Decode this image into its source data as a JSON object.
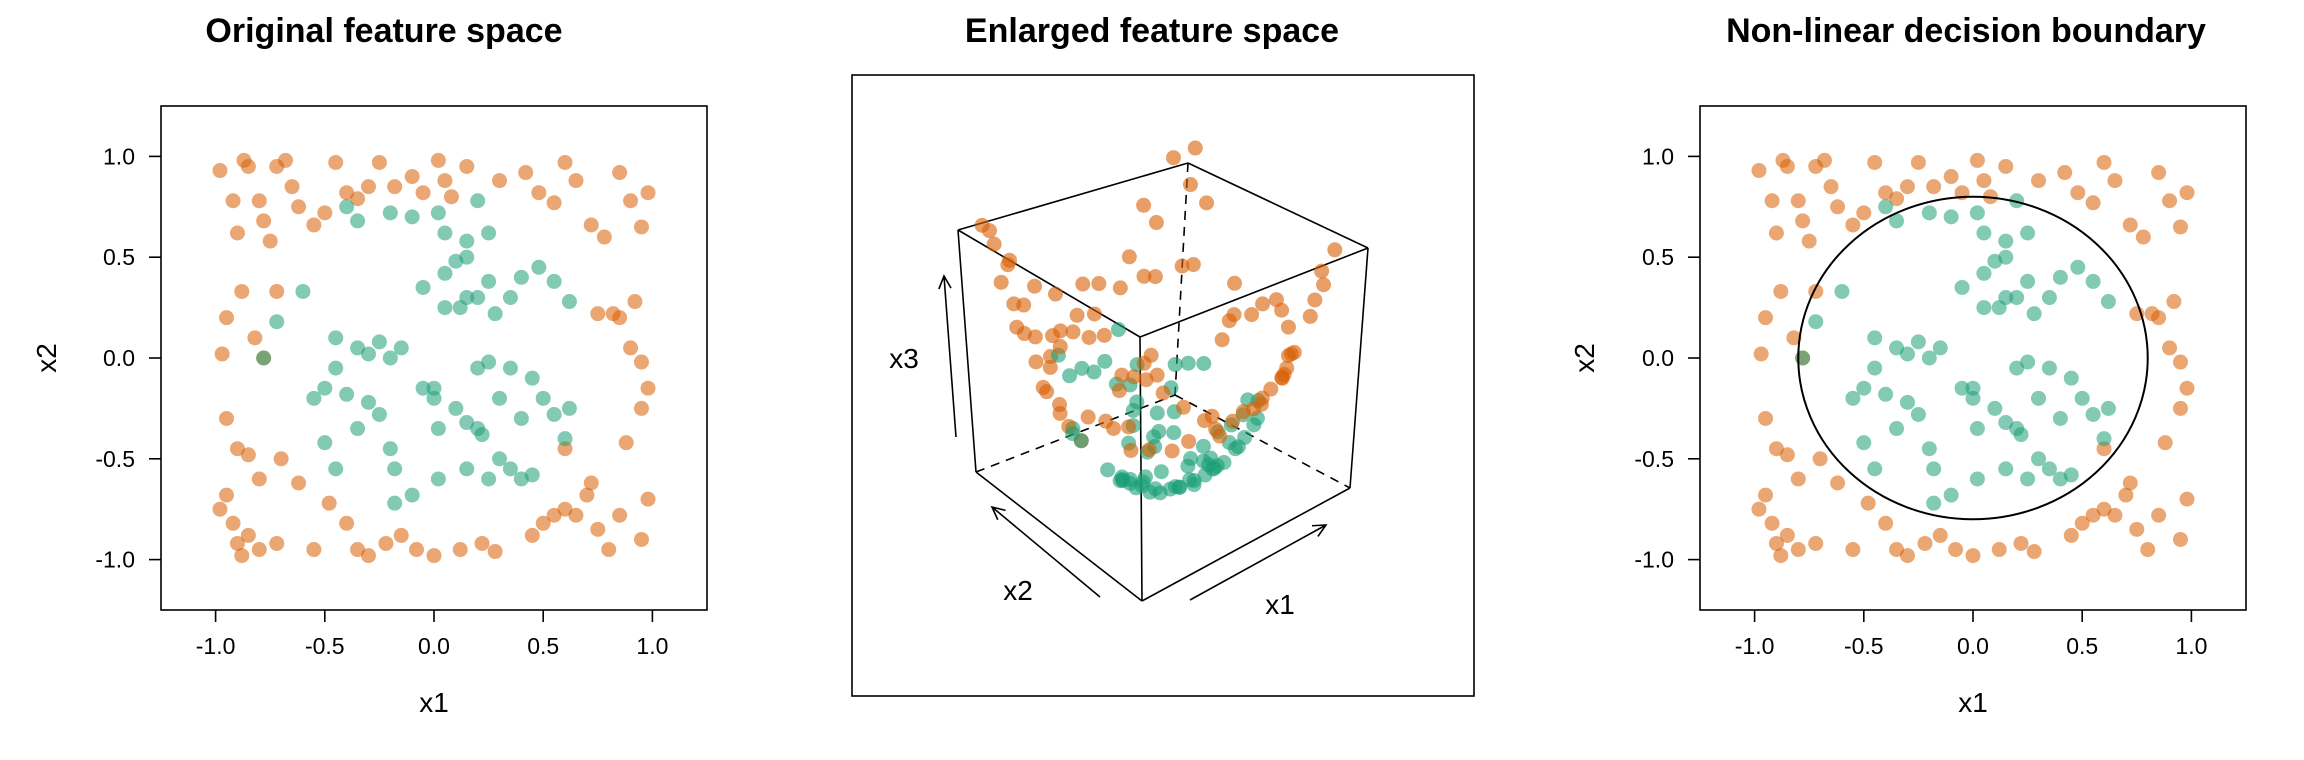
{
  "colors": {
    "orange": "#d95f02",
    "green": "#1b9e77"
  },
  "chart_data": [
    {
      "type": "scatter",
      "title": "Original feature space",
      "xlabel": "x1",
      "ylabel": "x2",
      "xlim": [
        -1.25,
        1.25
      ],
      "ylim": [
        -1.25,
        1.25
      ],
      "xticks": [
        "-1.0",
        "-0.5",
        "0.0",
        "0.5",
        "1.0"
      ],
      "yticks": [
        "-1.0",
        "-0.5",
        "0.0",
        "0.5",
        "1.0"
      ],
      "legend": "none",
      "series": [
        {
          "color": "orange",
          "points": [
            [
              -0.98,
              0.93
            ],
            [
              -0.92,
              0.78
            ],
            [
              -0.9,
              0.62
            ],
            [
              -0.87,
              0.98
            ],
            [
              -0.85,
              0.95
            ],
            [
              -0.8,
              0.78
            ],
            [
              -0.78,
              0.68
            ],
            [
              -0.75,
              0.58
            ],
            [
              -0.72,
              0.95
            ],
            [
              -0.68,
              0.98
            ],
            [
              -0.65,
              0.85
            ],
            [
              -0.62,
              0.75
            ],
            [
              -0.55,
              0.66
            ],
            [
              -0.5,
              0.72
            ],
            [
              -0.45,
              0.97
            ],
            [
              -0.4,
              0.82
            ],
            [
              -0.35,
              0.79
            ],
            [
              -0.3,
              0.85
            ],
            [
              -0.25,
              0.97
            ],
            [
              -0.18,
              0.85
            ],
            [
              -0.1,
              0.9
            ],
            [
              -0.05,
              0.82
            ],
            [
              0.02,
              0.98
            ],
            [
              0.05,
              0.88
            ],
            [
              0.08,
              0.8
            ],
            [
              0.15,
              0.95
            ],
            [
              0.3,
              0.88
            ],
            [
              0.42,
              0.92
            ],
            [
              0.48,
              0.82
            ],
            [
              0.55,
              0.77
            ],
            [
              0.6,
              0.97
            ],
            [
              0.65,
              0.88
            ],
            [
              0.72,
              0.66
            ],
            [
              0.78,
              0.6
            ],
            [
              0.85,
              0.92
            ],
            [
              0.9,
              0.78
            ],
            [
              0.95,
              0.65
            ],
            [
              0.98,
              0.82
            ],
            [
              -0.97,
              0.02
            ],
            [
              -0.95,
              0.2
            ],
            [
              -0.88,
              0.33
            ],
            [
              -0.82,
              0.1
            ],
            [
              -0.78,
              0.0
            ],
            [
              -0.72,
              0.33
            ],
            [
              0.75,
              0.22
            ],
            [
              0.82,
              0.22
            ],
            [
              0.85,
              0.2
            ],
            [
              0.9,
              0.05
            ],
            [
              0.92,
              0.28
            ],
            [
              0.95,
              -0.02
            ],
            [
              -0.95,
              -0.3
            ],
            [
              -0.9,
              -0.45
            ],
            [
              -0.85,
              -0.48
            ],
            [
              -0.8,
              -0.6
            ],
            [
              -0.7,
              -0.5
            ],
            [
              0.6,
              -0.45
            ],
            [
              0.72,
              -0.62
            ],
            [
              0.88,
              -0.42
            ],
            [
              0.95,
              -0.25
            ],
            [
              0.98,
              -0.15
            ],
            [
              -0.98,
              -0.75
            ],
            [
              -0.95,
              -0.68
            ],
            [
              -0.92,
              -0.82
            ],
            [
              -0.9,
              -0.92
            ],
            [
              -0.88,
              -0.98
            ],
            [
              -0.85,
              -0.88
            ],
            [
              -0.8,
              -0.95
            ],
            [
              -0.72,
              -0.92
            ],
            [
              -0.62,
              -0.62
            ],
            [
              -0.55,
              -0.95
            ],
            [
              -0.48,
              -0.72
            ],
            [
              -0.4,
              -0.82
            ],
            [
              -0.35,
              -0.95
            ],
            [
              -0.3,
              -0.98
            ],
            [
              -0.22,
              -0.92
            ],
            [
              -0.15,
              -0.88
            ],
            [
              -0.08,
              -0.95
            ],
            [
              0.0,
              -0.98
            ],
            [
              0.12,
              -0.95
            ],
            [
              0.22,
              -0.92
            ],
            [
              0.28,
              -0.96
            ],
            [
              0.45,
              -0.88
            ],
            [
              0.5,
              -0.82
            ],
            [
              0.55,
              -0.78
            ],
            [
              0.6,
              -0.75
            ],
            [
              0.65,
              -0.78
            ],
            [
              0.7,
              -0.68
            ],
            [
              0.75,
              -0.85
            ],
            [
              0.8,
              -0.95
            ],
            [
              0.85,
              -0.78
            ],
            [
              0.95,
              -0.9
            ],
            [
              0.98,
              -0.7
            ]
          ]
        },
        {
          "color": "green",
          "points": [
            [
              -0.2,
              0.72
            ],
            [
              -0.1,
              0.7
            ],
            [
              0.02,
              0.72
            ],
            [
              0.05,
              0.62
            ],
            [
              0.15,
              0.58
            ],
            [
              0.2,
              0.78
            ],
            [
              0.25,
              0.62
            ],
            [
              -0.35,
              0.68
            ],
            [
              -0.4,
              0.75
            ],
            [
              -0.6,
              0.33
            ],
            [
              -0.72,
              0.18
            ],
            [
              -0.78,
              0.0
            ],
            [
              -0.45,
              0.1
            ],
            [
              -0.35,
              0.05
            ],
            [
              -0.3,
              0.02
            ],
            [
              -0.25,
              0.08
            ],
            [
              -0.2,
              0.0
            ],
            [
              -0.15,
              0.05
            ],
            [
              -0.45,
              -0.05
            ],
            [
              -0.5,
              -0.15
            ],
            [
              -0.55,
              -0.2
            ],
            [
              -0.4,
              -0.18
            ],
            [
              -0.3,
              -0.22
            ],
            [
              -0.25,
              -0.28
            ],
            [
              -0.35,
              -0.35
            ],
            [
              -0.5,
              -0.42
            ],
            [
              -0.45,
              -0.55
            ],
            [
              -0.2,
              -0.45
            ],
            [
              -0.18,
              -0.55
            ],
            [
              -0.1,
              -0.68
            ],
            [
              -0.18,
              -0.72
            ],
            [
              0.02,
              -0.6
            ],
            [
              0.0,
              -0.15
            ],
            [
              0.02,
              -0.35
            ],
            [
              0.1,
              -0.25
            ],
            [
              0.15,
              -0.32
            ],
            [
              0.2,
              -0.35
            ],
            [
              0.22,
              -0.38
            ],
            [
              0.3,
              -0.2
            ],
            [
              0.35,
              -0.05
            ],
            [
              0.4,
              -0.3
            ],
            [
              0.45,
              -0.1
            ],
            [
              0.5,
              -0.2
            ],
            [
              0.55,
              -0.28
            ],
            [
              0.6,
              -0.4
            ],
            [
              0.62,
              -0.25
            ],
            [
              0.05,
              0.25
            ],
            [
              0.12,
              0.25
            ],
            [
              0.15,
              0.3
            ],
            [
              0.2,
              0.3
            ],
            [
              0.28,
              0.22
            ],
            [
              0.35,
              0.3
            ],
            [
              0.4,
              0.4
            ],
            [
              0.48,
              0.45
            ],
            [
              0.55,
              0.38
            ],
            [
              0.62,
              0.28
            ],
            [
              0.25,
              0.38
            ],
            [
              0.15,
              0.5
            ],
            [
              0.1,
              0.48
            ],
            [
              0.05,
              0.42
            ],
            [
              -0.05,
              0.35
            ],
            [
              0.2,
              -0.05
            ],
            [
              0.25,
              -0.02
            ],
            [
              -0.05,
              -0.15
            ],
            [
              0.0,
              -0.2
            ],
            [
              0.3,
              -0.5
            ],
            [
              0.35,
              -0.55
            ],
            [
              0.4,
              -0.6
            ],
            [
              0.45,
              -0.58
            ],
            [
              0.25,
              -0.6
            ],
            [
              0.15,
              -0.55
            ]
          ]
        }
      ]
    },
    {
      "type": "scatter",
      "title": "Enlarged feature space",
      "axis_labels": [
        "x1",
        "x2",
        "x3"
      ],
      "projection": "3d-box",
      "legend": "none"
    },
    {
      "type": "scatter",
      "title": "Non-linear decision boundary",
      "xlabel": "x1",
      "ylabel": "x2",
      "xlim": [
        -1.25,
        1.25
      ],
      "ylim": [
        -1.25,
        1.25
      ],
      "xticks": [
        "-1.0",
        "-0.5",
        "0.0",
        "0.5",
        "1.0"
      ],
      "yticks": [
        "-1.0",
        "-0.5",
        "0.0",
        "0.5",
        "1.0"
      ],
      "boundary": {
        "shape": "circle",
        "center": [
          0.0,
          0.0
        ],
        "radius": 0.8
      },
      "legend": "none"
    }
  ]
}
